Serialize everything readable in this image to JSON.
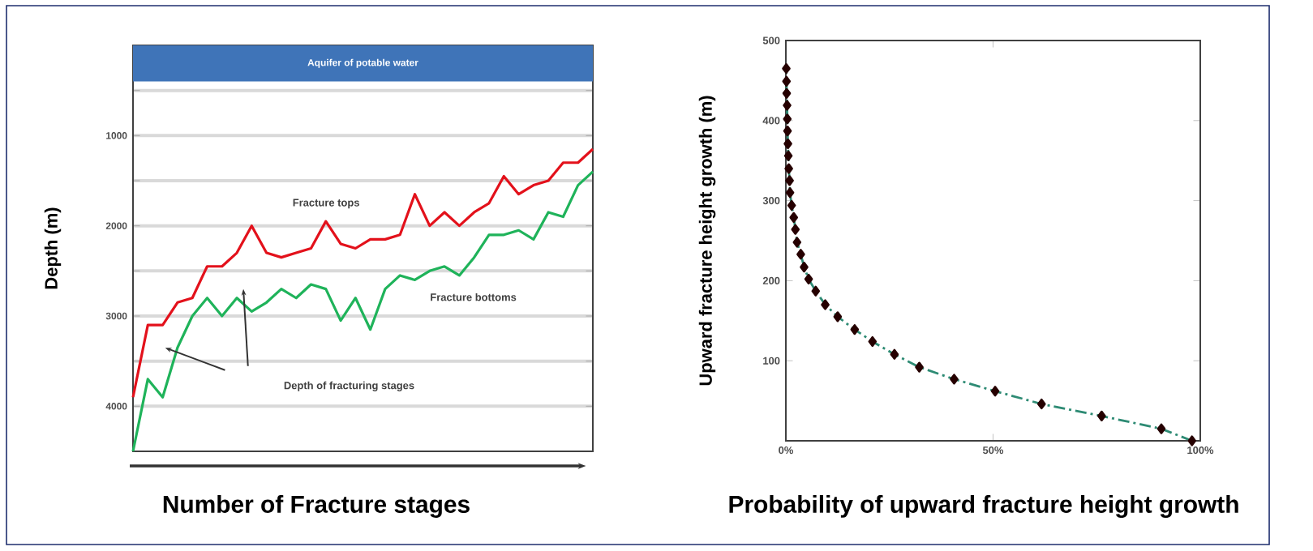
{
  "chart_data": [
    {
      "type": "line",
      "xlabel": "Number of Fracture stages",
      "ylabel": "Depth (m)",
      "categories": [
        null,
        null,
        null,
        null,
        null,
        null,
        null,
        null,
        null,
        null,
        null,
        null,
        null,
        null,
        null,
        null,
        null,
        null,
        null,
        null,
        null,
        null,
        null,
        null,
        null,
        null,
        null,
        null,
        null,
        null,
        null,
        null
      ],
      "series": [
        {
          "name": "Fracture tops",
          "color": "#e3111b",
          "values": [
            3900,
            3100,
            3100,
            2850,
            2800,
            2450,
            2450,
            2300,
            2000,
            2300,
            2350,
            2300,
            2250,
            1950,
            2200,
            2250,
            2150,
            2150,
            2100,
            1650,
            2000,
            1850,
            2000,
            1850,
            1750,
            1450,
            1650,
            1550,
            1500,
            1300,
            1300,
            1150
          ]
        },
        {
          "name": "Fracture bottoms",
          "color": "#1fb35a",
          "values": [
            4500,
            3700,
            3900,
            3350,
            3000,
            2800,
            3000,
            2800,
            2950,
            2850,
            2700,
            2800,
            2650,
            2700,
            3050,
            2800,
            3150,
            2700,
            2550,
            2600,
            2500,
            2450,
            2550,
            2350,
            2100,
            2100,
            2050,
            2150,
            1850,
            1900,
            1550,
            1400
          ]
        }
      ],
      "ylim": [
        4500,
        0
      ],
      "yticks": [
        {
          "value": 500,
          "label": null
        },
        1000,
        {
          "value": 1500,
          "label": null
        },
        2000,
        {
          "value": 2500,
          "label": null
        },
        3000,
        {
          "value": 3500,
          "label": null
        },
        4000
      ],
      "grid": "y",
      "tick_labels": "y",
      "bands": [
        {
          "axis": "y",
          "from": 0,
          "to": 400,
          "label": "Aquifer of potable water",
          "color": "#3f74b8"
        }
      ],
      "annotations": [
        "Depth of fracturing stages"
      ]
    },
    {
      "type": "line",
      "xlabel": "Probability of upward fracture height growth",
      "ylabel": "Upward fracture height growth (m)",
      "x": [
        98,
        90.6,
        76.2,
        61.7,
        50.5,
        40.6,
        32.2,
        26.2,
        20.9,
        16.6,
        12.5,
        9.5,
        7.2,
        5.5,
        4.4,
        3.6,
        2.7,
        2.3,
        1.9,
        1.4,
        1.0,
        0.9,
        0.7,
        0.6,
        0.5,
        0.4,
        0.35,
        0.3,
        0.2,
        0.15,
        0.1
      ],
      "series": [
        {
          "color": "#2e8b74",
          "values": [
            0,
            15,
            31,
            46,
            62,
            77,
            92,
            108,
            124,
            139,
            155,
            170,
            187,
            202,
            217,
            233,
            248,
            264,
            279,
            294,
            310,
            325,
            340,
            356,
            371,
            387,
            402,
            419,
            434,
            449,
            465
          ]
        }
      ],
      "xlim": [
        0,
        100
      ],
      "xticks": [
        {
          "value": 0,
          "label": "0%"
        },
        {
          "value": 50,
          "label": "50%"
        },
        {
          "value": 100,
          "label": "100%"
        }
      ],
      "ylim": [
        0,
        500
      ],
      "yticks": [
        100,
        200,
        300,
        400,
        500
      ],
      "marker": "diamond",
      "line_style": "dashed"
    }
  ]
}
